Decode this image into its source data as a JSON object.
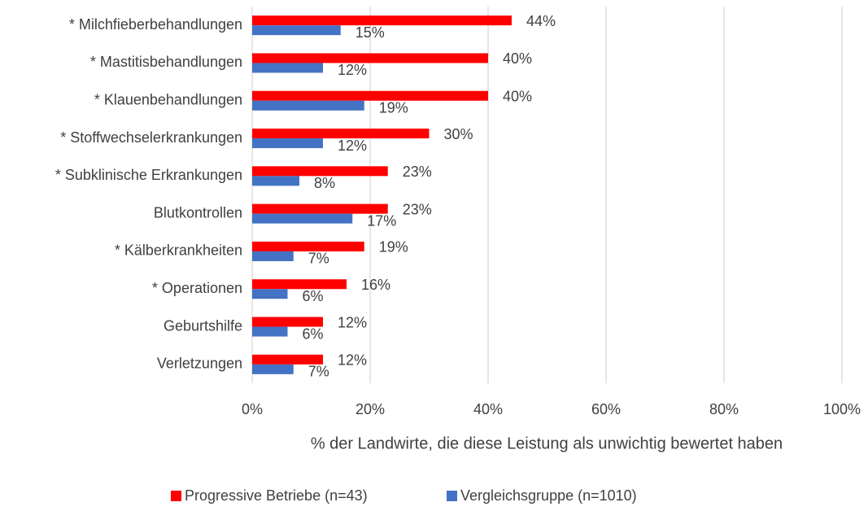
{
  "chart_data": {
    "type": "bar",
    "orientation": "horizontal",
    "categories": [
      "* Milchfieberbehandlungen",
      "* Mastitisbehandlungen",
      "* Klauenbehandlungen",
      "* Stoffwechselerkrankungen",
      "* Subklinische Erkrankungen",
      "Blutkontrollen",
      "* Kälberkrankheiten",
      "* Operationen",
      "Geburtshilfe",
      "Verletzungen"
    ],
    "series": [
      {
        "name": "Progressive Betriebe (n=43)",
        "color": "#ff0000",
        "values": [
          44,
          40,
          40,
          30,
          23,
          23,
          19,
          16,
          12,
          12
        ],
        "value_labels": [
          "44%",
          "40%",
          "40%",
          "30%",
          "23%",
          "23%",
          "19%",
          "16%",
          "12%",
          "12%"
        ]
      },
      {
        "name": "Vergleichsgruppe (n=1010)",
        "color": "#4472c4",
        "values": [
          15,
          12,
          19,
          12,
          8,
          17,
          7,
          6,
          6,
          7
        ],
        "value_labels": [
          "15%",
          "12%",
          "19%",
          "12%",
          "8%",
          "17%",
          "7%",
          "6%",
          "6%",
          "7%"
        ]
      }
    ],
    "xlabel": "% der Landwirte, die diese Leistung als unwichtig bewertet haben",
    "xlim": [
      0,
      100
    ],
    "xticks": [
      {
        "value": 0,
        "label": "0%"
      },
      {
        "value": 20,
        "label": "20%"
      },
      {
        "value": 40,
        "label": "40%"
      },
      {
        "value": 60,
        "label": "60%"
      },
      {
        "value": 80,
        "label": "80%"
      },
      {
        "value": 100,
        "label": "100%"
      }
    ],
    "grid": true,
    "legend": "bottom"
  }
}
